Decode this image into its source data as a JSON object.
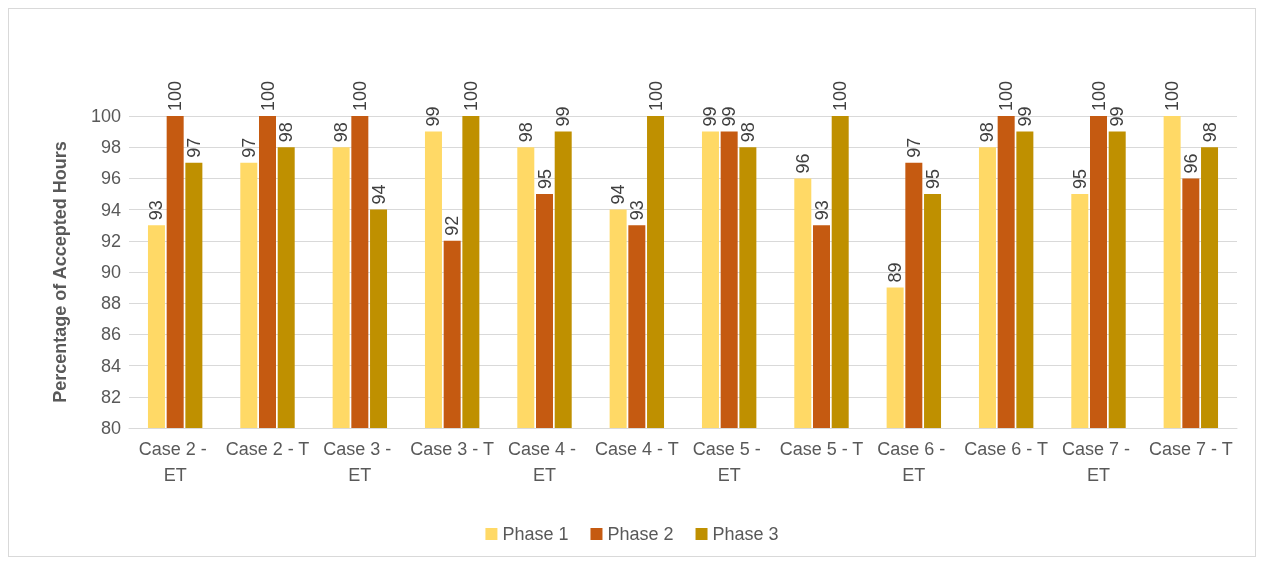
{
  "chart_data": {
    "type": "bar",
    "ylabel": "Percentage of Accepted Hours",
    "categories": [
      "Case 2 - ET",
      "Case 2 - T",
      "Case 3 - ET",
      "Case 3 - T",
      "Case 4 - ET",
      "Case 4 - T",
      "Case 5 - ET",
      "Case 5 - T",
      "Case 6 - ET",
      "Case 6 - T",
      "Case 7 - ET",
      "Case 7 - T"
    ],
    "series": [
      {
        "name": "Phase 1",
        "color": "#ffd966",
        "values": [
          93,
          97,
          98,
          99,
          98,
          94,
          99,
          96,
          89,
          98,
          95,
          100
        ]
      },
      {
        "name": "Phase 2",
        "color": "#c55a11",
        "values": [
          100,
          100,
          100,
          92,
          95,
          93,
          99,
          93,
          97,
          100,
          100,
          96
        ]
      },
      {
        "name": "Phase 3",
        "color": "#bf9000",
        "values": [
          97,
          98,
          94,
          100,
          99,
          100,
          98,
          100,
          95,
          99,
          99,
          98
        ]
      }
    ],
    "ylim": [
      80,
      100
    ],
    "yticks": [
      80,
      82,
      84,
      86,
      88,
      90,
      92,
      94,
      96,
      98,
      100
    ],
    "grid": "y",
    "legend": "bottom",
    "data_labels": true
  }
}
